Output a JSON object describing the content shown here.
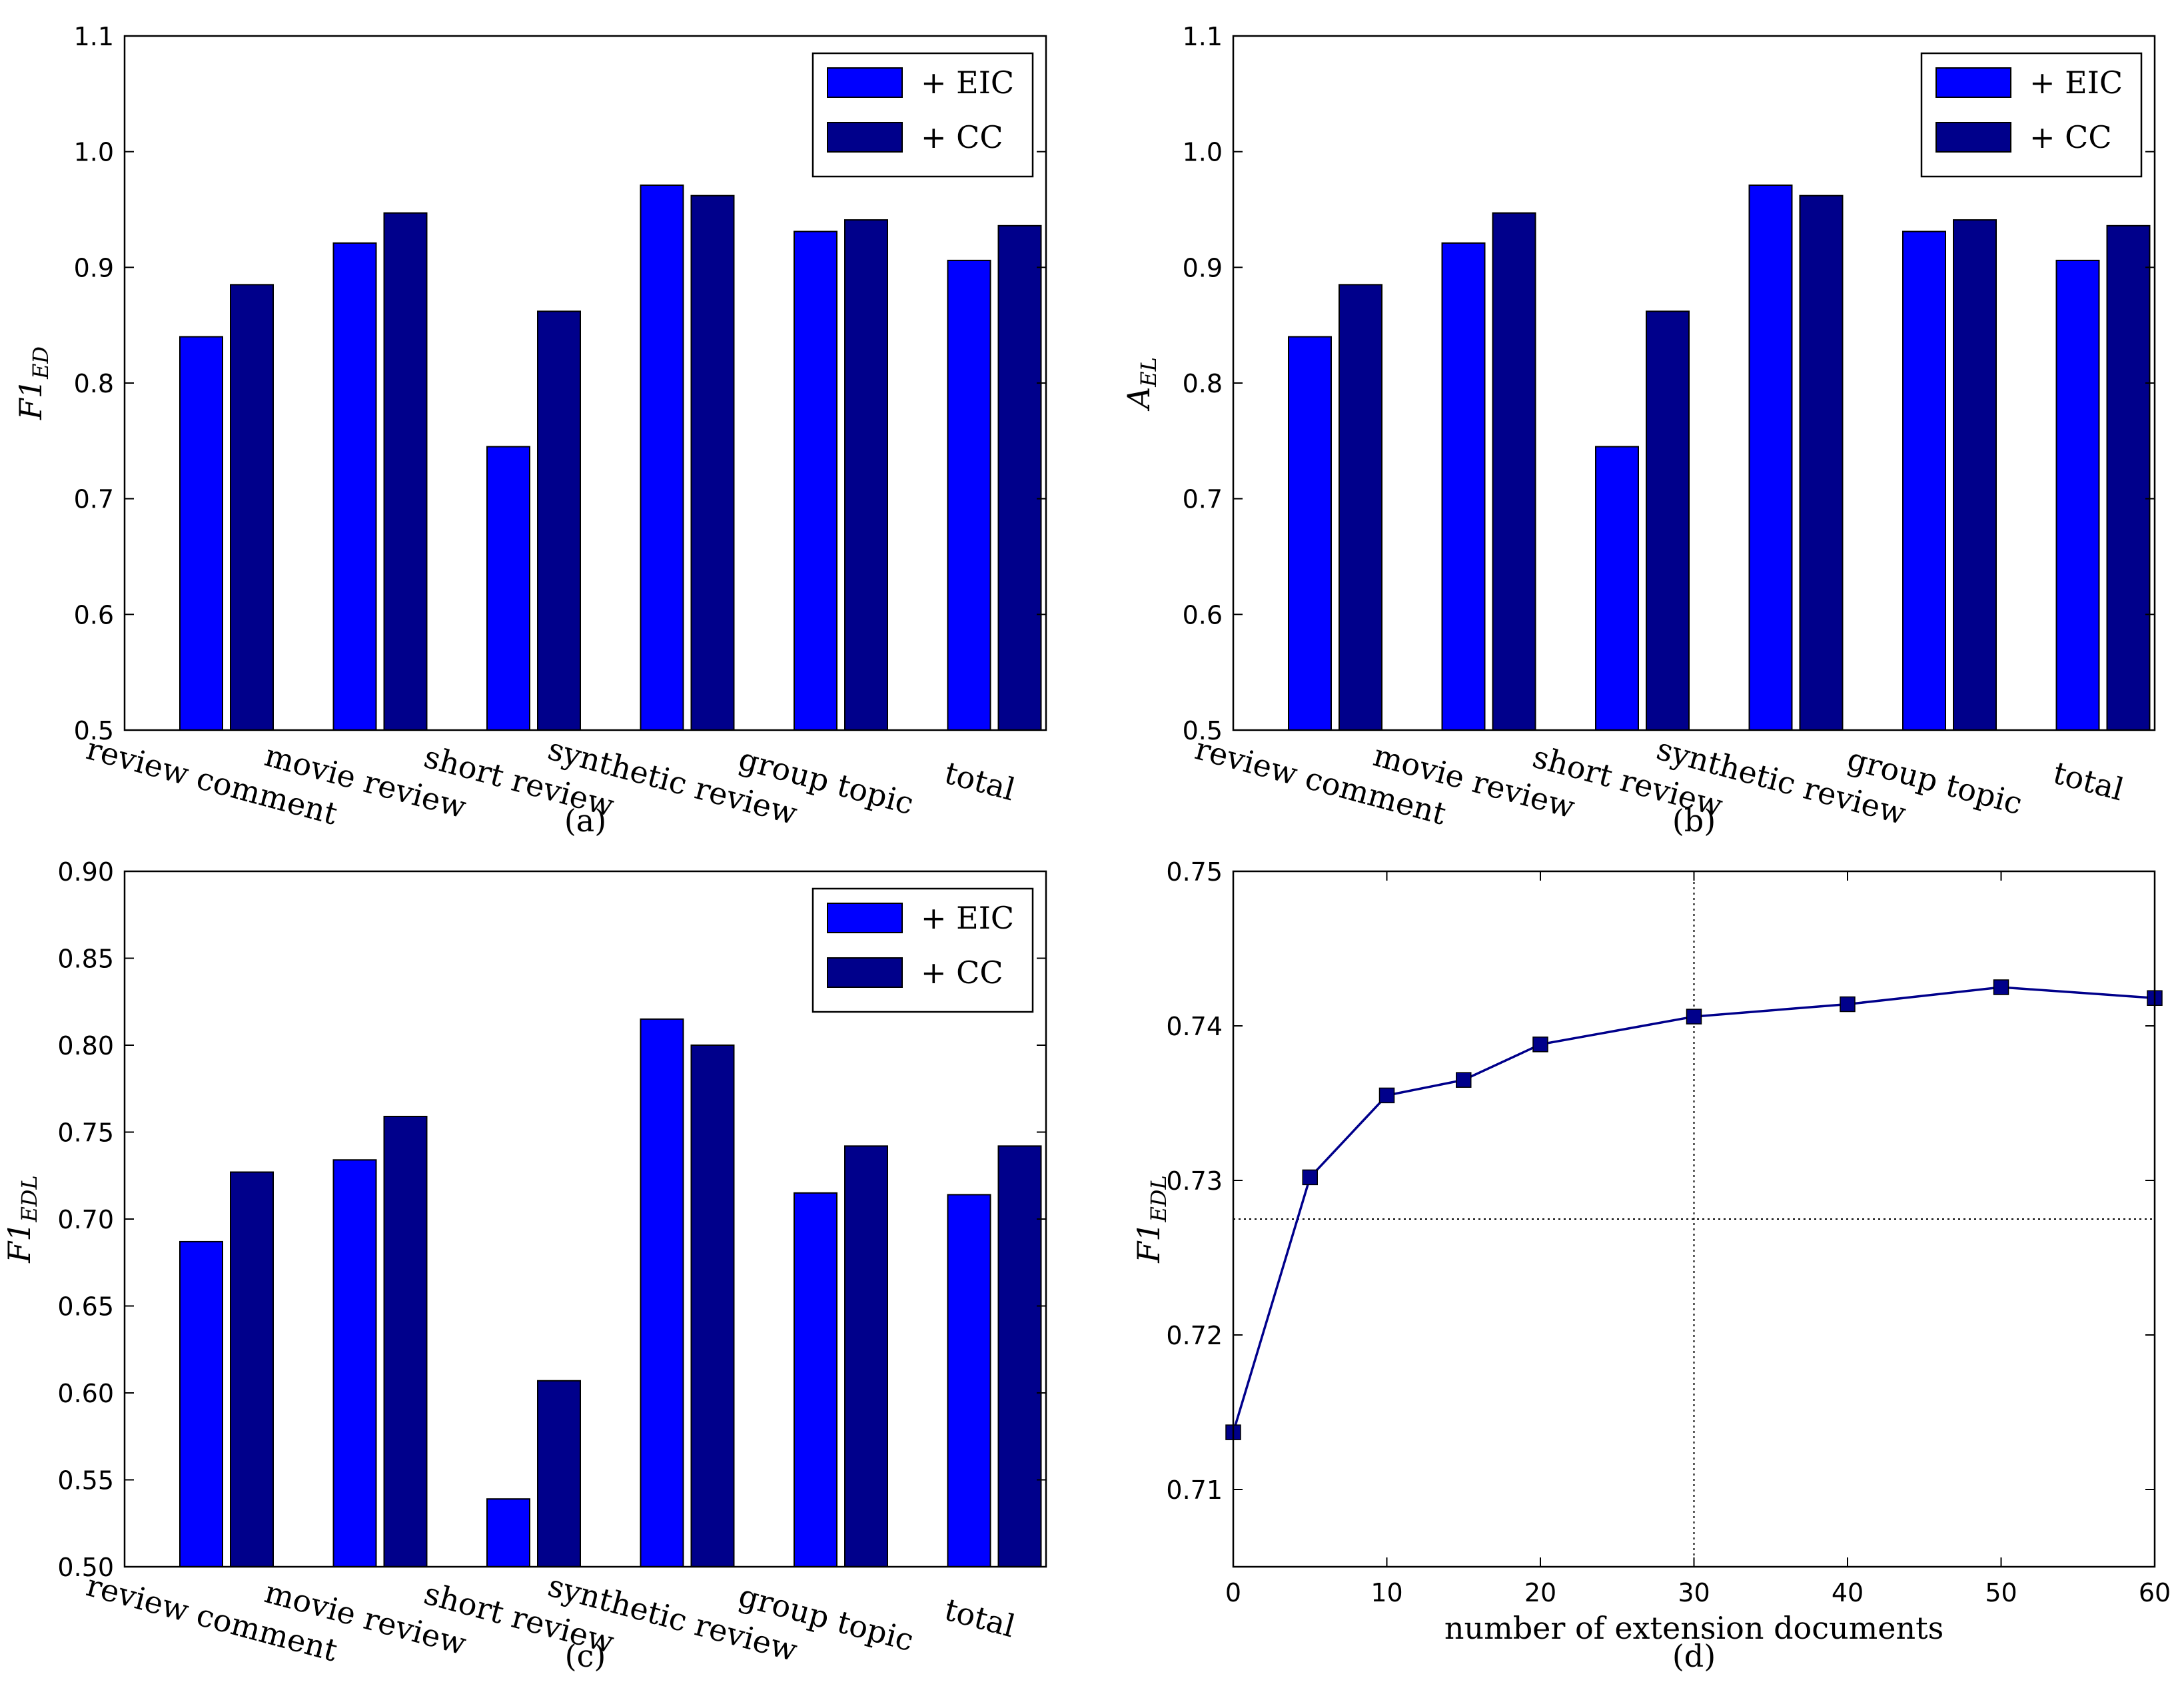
{
  "figure": {
    "colors": {
      "eic": "#0000ff",
      "cc": "#00008b",
      "line": "#00008b",
      "frame": "#000000"
    }
  },
  "chart_data": [
    {
      "id": "a",
      "type": "bar",
      "caption": "(a)",
      "ylabel_main": "F1",
      "ylabel_sub": "ED",
      "ylim": [
        0.5,
        1.1
      ],
      "yticks": [
        "0.5",
        "0.6",
        "0.7",
        "0.8",
        "0.9",
        "1.0",
        "1.1"
      ],
      "ytick_values": [
        0.5,
        0.6,
        0.7,
        0.8,
        0.9,
        1.0,
        1.1
      ],
      "categories": [
        "review comment",
        "movie review",
        "short review",
        "synthetic review",
        "group topic",
        "total"
      ],
      "series": [
        {
          "name": "+ EIC",
          "values": [
            0.84,
            0.921,
            0.745,
            0.971,
            0.931,
            0.906
          ]
        },
        {
          "name": "+ CC",
          "values": [
            0.885,
            0.947,
            0.862,
            0.962,
            0.941,
            0.936
          ]
        }
      ],
      "legend": "top-right"
    },
    {
      "id": "b",
      "type": "bar",
      "caption": "(b)",
      "ylabel_main": "A",
      "ylabel_sub": "EL",
      "ylim": [
        0.5,
        1.1
      ],
      "yticks": [
        "0.5",
        "0.6",
        "0.7",
        "0.8",
        "0.9",
        "1.0",
        "1.1"
      ],
      "ytick_values": [
        0.5,
        0.6,
        0.7,
        0.8,
        0.9,
        1.0,
        1.1
      ],
      "categories": [
        "review comment",
        "movie review",
        "short review",
        "synthetic review",
        "group topic",
        "total"
      ],
      "series": [
        {
          "name": "+ EIC",
          "values": [
            0.84,
            0.921,
            0.745,
            0.971,
            0.931,
            0.906
          ]
        },
        {
          "name": "+ CC",
          "values": [
            0.885,
            0.947,
            0.862,
            0.962,
            0.941,
            0.936
          ]
        }
      ],
      "legend": "top-right"
    },
    {
      "id": "c",
      "type": "bar",
      "caption": "(c)",
      "ylabel_main": "F1",
      "ylabel_sub": "EDL",
      "ylim": [
        0.5,
        0.9
      ],
      "yticks": [
        "0.50",
        "0.55",
        "0.60",
        "0.65",
        "0.70",
        "0.75",
        "0.80",
        "0.85",
        "0.90"
      ],
      "ytick_values": [
        0.5,
        0.55,
        0.6,
        0.65,
        0.7,
        0.75,
        0.8,
        0.85,
        0.9
      ],
      "categories": [
        "review comment",
        "movie review",
        "short review",
        "synthetic review",
        "group topic",
        "total"
      ],
      "series": [
        {
          "name": "+ EIC",
          "values": [
            0.687,
            0.734,
            0.539,
            0.815,
            0.715,
            0.714
          ]
        },
        {
          "name": "+ CC",
          "values": [
            0.727,
            0.759,
            0.607,
            0.8,
            0.742,
            0.742
          ]
        }
      ],
      "legend": "top-right"
    },
    {
      "id": "d",
      "type": "line",
      "caption": "(d)",
      "xlabel": "number of extension documents",
      "ylabel_main": "F1",
      "ylabel_sub": "EDL",
      "xlim": [
        0,
        60
      ],
      "ylim": [
        0.705,
        0.75
      ],
      "xticks": [
        "0",
        "10",
        "20",
        "30",
        "40",
        "50",
        "60"
      ],
      "xtick_values": [
        0,
        10,
        20,
        30,
        40,
        50,
        60
      ],
      "yticks": [
        "0.71",
        "0.72",
        "0.73",
        "0.74",
        "0.75"
      ],
      "ytick_values": [
        0.71,
        0.72,
        0.73,
        0.74,
        0.75
      ],
      "x": [
        0,
        5,
        10,
        15,
        20,
        30,
        40,
        50,
        60
      ],
      "y": [
        0.7137,
        0.7302,
        0.7355,
        0.7365,
        0.7388,
        0.7406,
        0.7414,
        0.7425,
        0.7418
      ],
      "reference_lines": {
        "vertical_x": 30,
        "horizontal_y": 0.7275
      }
    }
  ]
}
